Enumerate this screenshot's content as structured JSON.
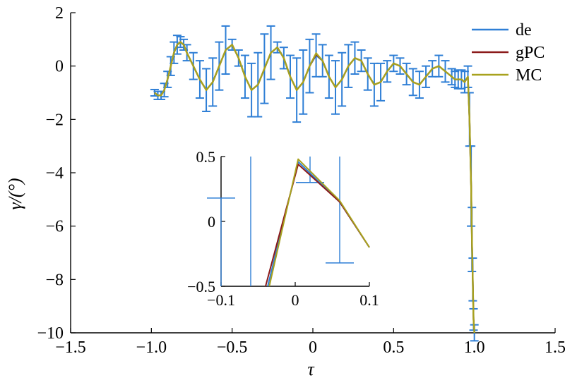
{
  "chart_data": {
    "type": "line",
    "xlabel": "τ",
    "ylabel": "γ/(°)",
    "xlim": [
      -1.5,
      1.5
    ],
    "ylim": [
      -10,
      2
    ],
    "xticks": [
      -1.5,
      -1.0,
      -0.5,
      0,
      0.5,
      1.0,
      1.5
    ],
    "xtick_labels": [
      "−1.5",
      "−1.0",
      "−0.5",
      "0",
      "0.5",
      "1.0",
      "1.5"
    ],
    "yticks": [
      2,
      0,
      -2,
      -4,
      -6,
      -8,
      -10
    ],
    "ytick_labels": [
      "2",
      "0",
      "−2",
      "−4",
      "−6",
      "−8",
      "−10"
    ],
    "legend_position": "top-right",
    "colors": {
      "de": "#2f7fd6",
      "gPC": "#8b1a1a",
      "MC": "#a8a21e"
    },
    "series": [
      {
        "name": "de",
        "x": [
          -0.98,
          -0.96,
          -0.94,
          -0.92,
          -0.9,
          -0.88,
          -0.86,
          -0.84,
          -0.82,
          -0.8,
          -0.78,
          -0.74,
          -0.7,
          -0.66,
          -0.62,
          -0.58,
          -0.54,
          -0.5,
          -0.46,
          -0.42,
          -0.38,
          -0.34,
          -0.3,
          -0.26,
          -0.22,
          -0.18,
          -0.14,
          -0.1,
          -0.06,
          -0.02,
          0.02,
          0.06,
          0.1,
          0.14,
          0.18,
          0.22,
          0.26,
          0.3,
          0.34,
          0.38,
          0.42,
          0.46,
          0.5,
          0.54,
          0.58,
          0.62,
          0.66,
          0.7,
          0.74,
          0.78,
          0.82,
          0.86,
          0.88,
          0.9,
          0.92,
          0.94,
          0.96,
          0.97,
          0.98,
          0.985,
          0.99,
          0.995,
          1.0
        ],
        "y": [
          -1.0,
          -1.1,
          -1.1,
          -0.9,
          -0.5,
          0.0,
          0.5,
          0.8,
          0.9,
          0.8,
          0.5,
          0.0,
          -0.5,
          -0.9,
          -0.6,
          0.0,
          0.6,
          0.8,
          0.3,
          -0.4,
          -0.9,
          -0.7,
          -0.1,
          0.5,
          0.7,
          0.3,
          -0.4,
          -0.9,
          -0.6,
          0.0,
          0.4,
          0.2,
          -0.4,
          -0.8,
          -0.5,
          0.0,
          0.3,
          0.2,
          -0.3,
          -0.7,
          -0.6,
          -0.2,
          0.1,
          0.0,
          -0.3,
          -0.6,
          -0.7,
          -0.4,
          -0.1,
          0.0,
          -0.2,
          -0.4,
          -0.5,
          -0.5,
          -0.5,
          -0.6,
          -0.4,
          -2.0,
          -4.5,
          -6.5,
          -8.0,
          -9.5,
          -10.0
        ],
        "err": [
          0.12,
          0.15,
          0.15,
          0.25,
          0.3,
          0.35,
          0.4,
          0.35,
          0.2,
          0.2,
          0.3,
          0.5,
          0.7,
          0.8,
          0.9,
          0.9,
          0.9,
          0.2,
          0.3,
          0.8,
          1.0,
          1.2,
          1.3,
          1.0,
          0.2,
          0.4,
          0.8,
          1.2,
          1.2,
          1.0,
          0.8,
          0.6,
          0.8,
          1.0,
          1.0,
          0.8,
          0.6,
          0.4,
          0.6,
          0.8,
          0.7,
          0.4,
          0.3,
          0.3,
          0.4,
          0.5,
          0.5,
          0.4,
          0.3,
          0.4,
          0.4,
          0.3,
          0.3,
          0.35,
          0.35,
          0.4,
          0.4,
          1.0,
          1.5,
          1.2,
          0.8,
          0.4,
          0.3
        ]
      },
      {
        "name": "gPC",
        "x": [
          -0.98,
          -0.96,
          -0.94,
          -0.92,
          -0.9,
          -0.88,
          -0.86,
          -0.84,
          -0.82,
          -0.8,
          -0.78,
          -0.74,
          -0.7,
          -0.66,
          -0.62,
          -0.58,
          -0.54,
          -0.5,
          -0.46,
          -0.42,
          -0.38,
          -0.34,
          -0.3,
          -0.26,
          -0.22,
          -0.18,
          -0.14,
          -0.1,
          -0.06,
          -0.02,
          0.02,
          0.06,
          0.1,
          0.14,
          0.18,
          0.22,
          0.26,
          0.3,
          0.34,
          0.38,
          0.42,
          0.46,
          0.5,
          0.54,
          0.58,
          0.62,
          0.66,
          0.7,
          0.74,
          0.78,
          0.82,
          0.86,
          0.88,
          0.9,
          0.92,
          0.94,
          0.96,
          0.97,
          0.98,
          0.985,
          0.99,
          0.995,
          1.0
        ],
        "y": [
          -1.0,
          -1.1,
          -1.1,
          -0.9,
          -0.5,
          0.0,
          0.5,
          0.8,
          0.9,
          0.8,
          0.5,
          0.0,
          -0.5,
          -0.9,
          -0.6,
          0.0,
          0.6,
          0.8,
          0.3,
          -0.4,
          -0.9,
          -0.7,
          -0.1,
          0.5,
          0.7,
          0.3,
          -0.4,
          -0.9,
          -0.6,
          0.0,
          0.44,
          0.2,
          -0.4,
          -0.8,
          -0.5,
          0.0,
          0.3,
          0.2,
          -0.3,
          -0.7,
          -0.6,
          -0.2,
          0.1,
          0.0,
          -0.3,
          -0.6,
          -0.7,
          -0.4,
          -0.1,
          0.0,
          -0.2,
          -0.4,
          -0.5,
          -0.5,
          -0.5,
          -0.6,
          -0.4,
          -2.0,
          -4.5,
          -6.5,
          -8.0,
          -9.5,
          -10.0
        ]
      },
      {
        "name": "MC",
        "x": [
          -0.98,
          -0.96,
          -0.94,
          -0.92,
          -0.9,
          -0.88,
          -0.86,
          -0.84,
          -0.82,
          -0.8,
          -0.78,
          -0.74,
          -0.7,
          -0.66,
          -0.62,
          -0.58,
          -0.54,
          -0.5,
          -0.46,
          -0.42,
          -0.38,
          -0.34,
          -0.3,
          -0.26,
          -0.22,
          -0.18,
          -0.14,
          -0.1,
          -0.06,
          -0.02,
          0.02,
          0.06,
          0.1,
          0.14,
          0.18,
          0.22,
          0.26,
          0.3,
          0.34,
          0.38,
          0.42,
          0.46,
          0.5,
          0.54,
          0.58,
          0.62,
          0.66,
          0.7,
          0.74,
          0.78,
          0.82,
          0.86,
          0.88,
          0.9,
          0.92,
          0.94,
          0.96,
          0.97,
          0.98,
          0.985,
          0.99,
          0.995,
          1.0
        ],
        "y": [
          -1.0,
          -1.1,
          -1.1,
          -0.9,
          -0.5,
          0.0,
          0.5,
          0.8,
          0.9,
          0.8,
          0.5,
          0.0,
          -0.5,
          -0.9,
          -0.6,
          0.0,
          0.6,
          0.8,
          0.3,
          -0.4,
          -0.9,
          -0.7,
          -0.1,
          0.5,
          0.7,
          0.3,
          -0.4,
          -0.9,
          -0.6,
          0.0,
          0.48,
          0.2,
          -0.4,
          -0.8,
          -0.5,
          0.0,
          0.3,
          0.2,
          -0.3,
          -0.7,
          -0.6,
          -0.2,
          0.1,
          0.0,
          -0.3,
          -0.6,
          -0.7,
          -0.4,
          -0.1,
          0.0,
          -0.2,
          -0.4,
          -0.5,
          -0.5,
          -0.5,
          -0.6,
          -0.4,
          -2.0,
          -4.5,
          -6.5,
          -8.0,
          -9.5,
          -10.0
        ]
      }
    ],
    "inset": {
      "xlim": [
        -0.1,
        0.1
      ],
      "ylim": [
        -0.5,
        0.5
      ],
      "xticks": [
        -0.1,
        0,
        0.1
      ],
      "xtick_labels": [
        "−0.1",
        "0",
        "0.1"
      ],
      "yticks": [
        0.5,
        0,
        -0.5
      ],
      "ytick_labels": [
        "0.5",
        "0",
        "−0.5"
      ],
      "errorbars": [
        {
          "x": -0.1,
          "lo": -0.5,
          "hi": 0.18
        },
        {
          "x": -0.06,
          "lo": -0.5,
          "hi": 0.5
        },
        {
          "x": 0.02,
          "lo": 0.3,
          "hi": 0.5
        },
        {
          "x": 0.06,
          "lo": -0.32,
          "hi": 0.5
        }
      ],
      "series": [
        {
          "name": "de",
          "x": [
            -0.037,
            0.004,
            0.06,
            0.1
          ],
          "y": [
            -0.5,
            0.46,
            0.15,
            -0.2
          ]
        },
        {
          "name": "gPC",
          "x": [
            -0.04,
            0.004,
            0.06,
            0.1
          ],
          "y": [
            -0.5,
            0.44,
            0.15,
            -0.2
          ]
        },
        {
          "name": "MC",
          "x": [
            -0.035,
            0.004,
            0.06,
            0.1
          ],
          "y": [
            -0.5,
            0.48,
            0.16,
            -0.2
          ]
        }
      ]
    }
  }
}
